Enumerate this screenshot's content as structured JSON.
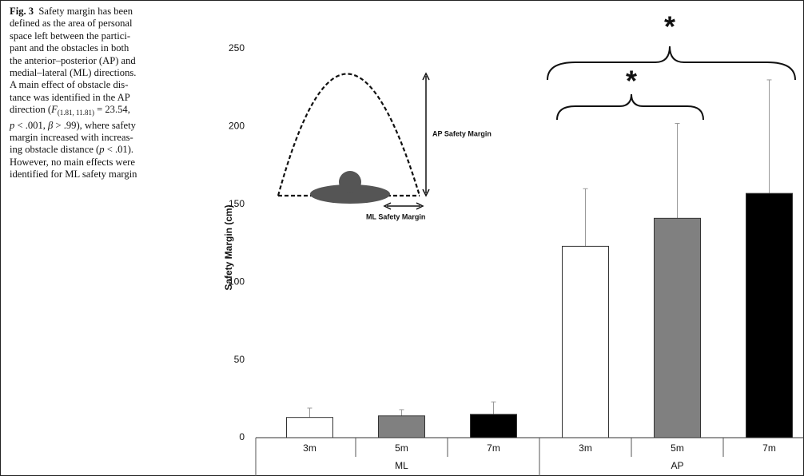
{
  "caption": {
    "lines": [
      [
        {
          "text": "Fig. 3",
          "style": "b"
        },
        "  Safety margin has been"
      ],
      [
        "defined as the area of personal"
      ],
      [
        "space left between the partici-"
      ],
      [
        "pant and the obstacles in both"
      ],
      [
        "the anterior–posterior (AP) and"
      ],
      [
        "medial–lateral (ML) directions."
      ],
      [
        "A main effect of obstacle dis-"
      ],
      [
        "tance was identified in the AP"
      ],
      [
        "direction (",
        {
          "text": "F",
          "style": "i"
        },
        {
          "text": "(1.81, 11.81)",
          "style": "sub"
        },
        " = 23.54,"
      ],
      [
        {
          "text": "p",
          "style": "i"
        },
        " < .001, ",
        {
          "text": "β",
          "style": "i"
        },
        " > .99), where safety"
      ],
      [
        "margin increased with increas-"
      ],
      [
        "ing obstacle distance (",
        {
          "text": "p",
          "style": "i"
        },
        " < .01)."
      ],
      [
        "However, no main effects were"
      ],
      [
        "identified for ML safety margin"
      ]
    ]
  },
  "diagram": {
    "ap_label": "AP Safety Margin",
    "ml_label": "ML Safety Margin"
  },
  "chart_data": {
    "type": "bar",
    "y_label": "Safety Margin (cm)",
    "categories": [
      "3m",
      "5m",
      "7m",
      "3m",
      "5m",
      "7m"
    ],
    "groups": [
      "ML",
      "AP"
    ],
    "values": [
      13,
      14,
      15,
      123,
      141,
      157
    ],
    "errors": [
      6,
      4,
      8,
      37,
      61,
      73
    ],
    "colors": [
      "#ffffff",
      "#808080",
      "#000000",
      "#ffffff",
      "#808080",
      "#000000"
    ],
    "ylim": [
      0,
      250
    ],
    "yticks": [
      0,
      50,
      100,
      150,
      200,
      250
    ],
    "annotations": [
      "*",
      "*"
    ]
  }
}
